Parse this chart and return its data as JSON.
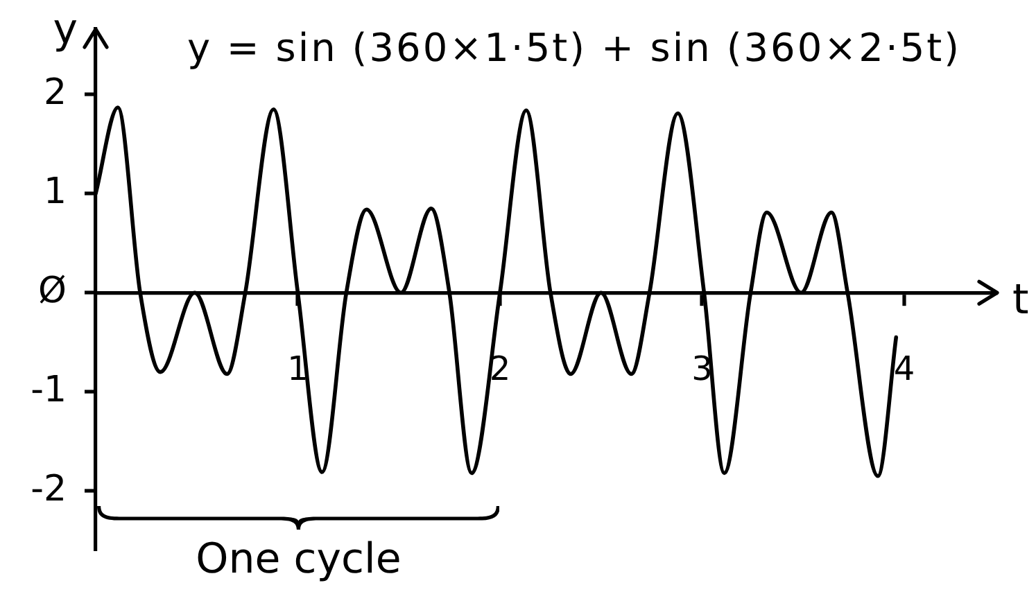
{
  "chart_data": {
    "type": "line",
    "title": "y = sin (360×1·5t) + sin (360×2·5t)",
    "xlabel": "t",
    "ylabel": "y",
    "x": [
      0,
      0.11,
      0.22,
      0.32,
      0.49,
      0.65,
      0.74,
      0.88,
      1.0,
      1.12,
      1.24,
      1.34,
      1.51,
      1.66,
      1.75,
      1.86,
      2.0,
      2.13,
      2.25,
      2.35,
      2.5,
      2.65,
      2.74,
      2.88,
      3.01,
      3.11,
      3.24,
      3.32,
      3.49,
      3.64,
      3.72,
      3.87,
      3.96
    ],
    "values": [
      1.0,
      1.87,
      0,
      -0.8,
      0,
      -0.82,
      0,
      1.85,
      0,
      -1.81,
      0,
      0.84,
      0,
      0.85,
      0,
      -1.82,
      0,
      1.84,
      0,
      -0.82,
      0,
      -0.82,
      0,
      1.81,
      0,
      -1.82,
      0,
      0.81,
      0,
      0.81,
      0,
      -1.85,
      -0.45
    ],
    "color": "#000000",
    "xlim": [
      0,
      4.46
    ],
    "ylim": [
      -2.6,
      2.66
    ],
    "xticks": [
      1,
      2,
      3,
      4
    ],
    "yticks": [
      -2,
      -1,
      {
        "value": 0,
        "label": "Ø"
      },
      1,
      2
    ],
    "annotations": [
      "One cycle"
    ]
  }
}
